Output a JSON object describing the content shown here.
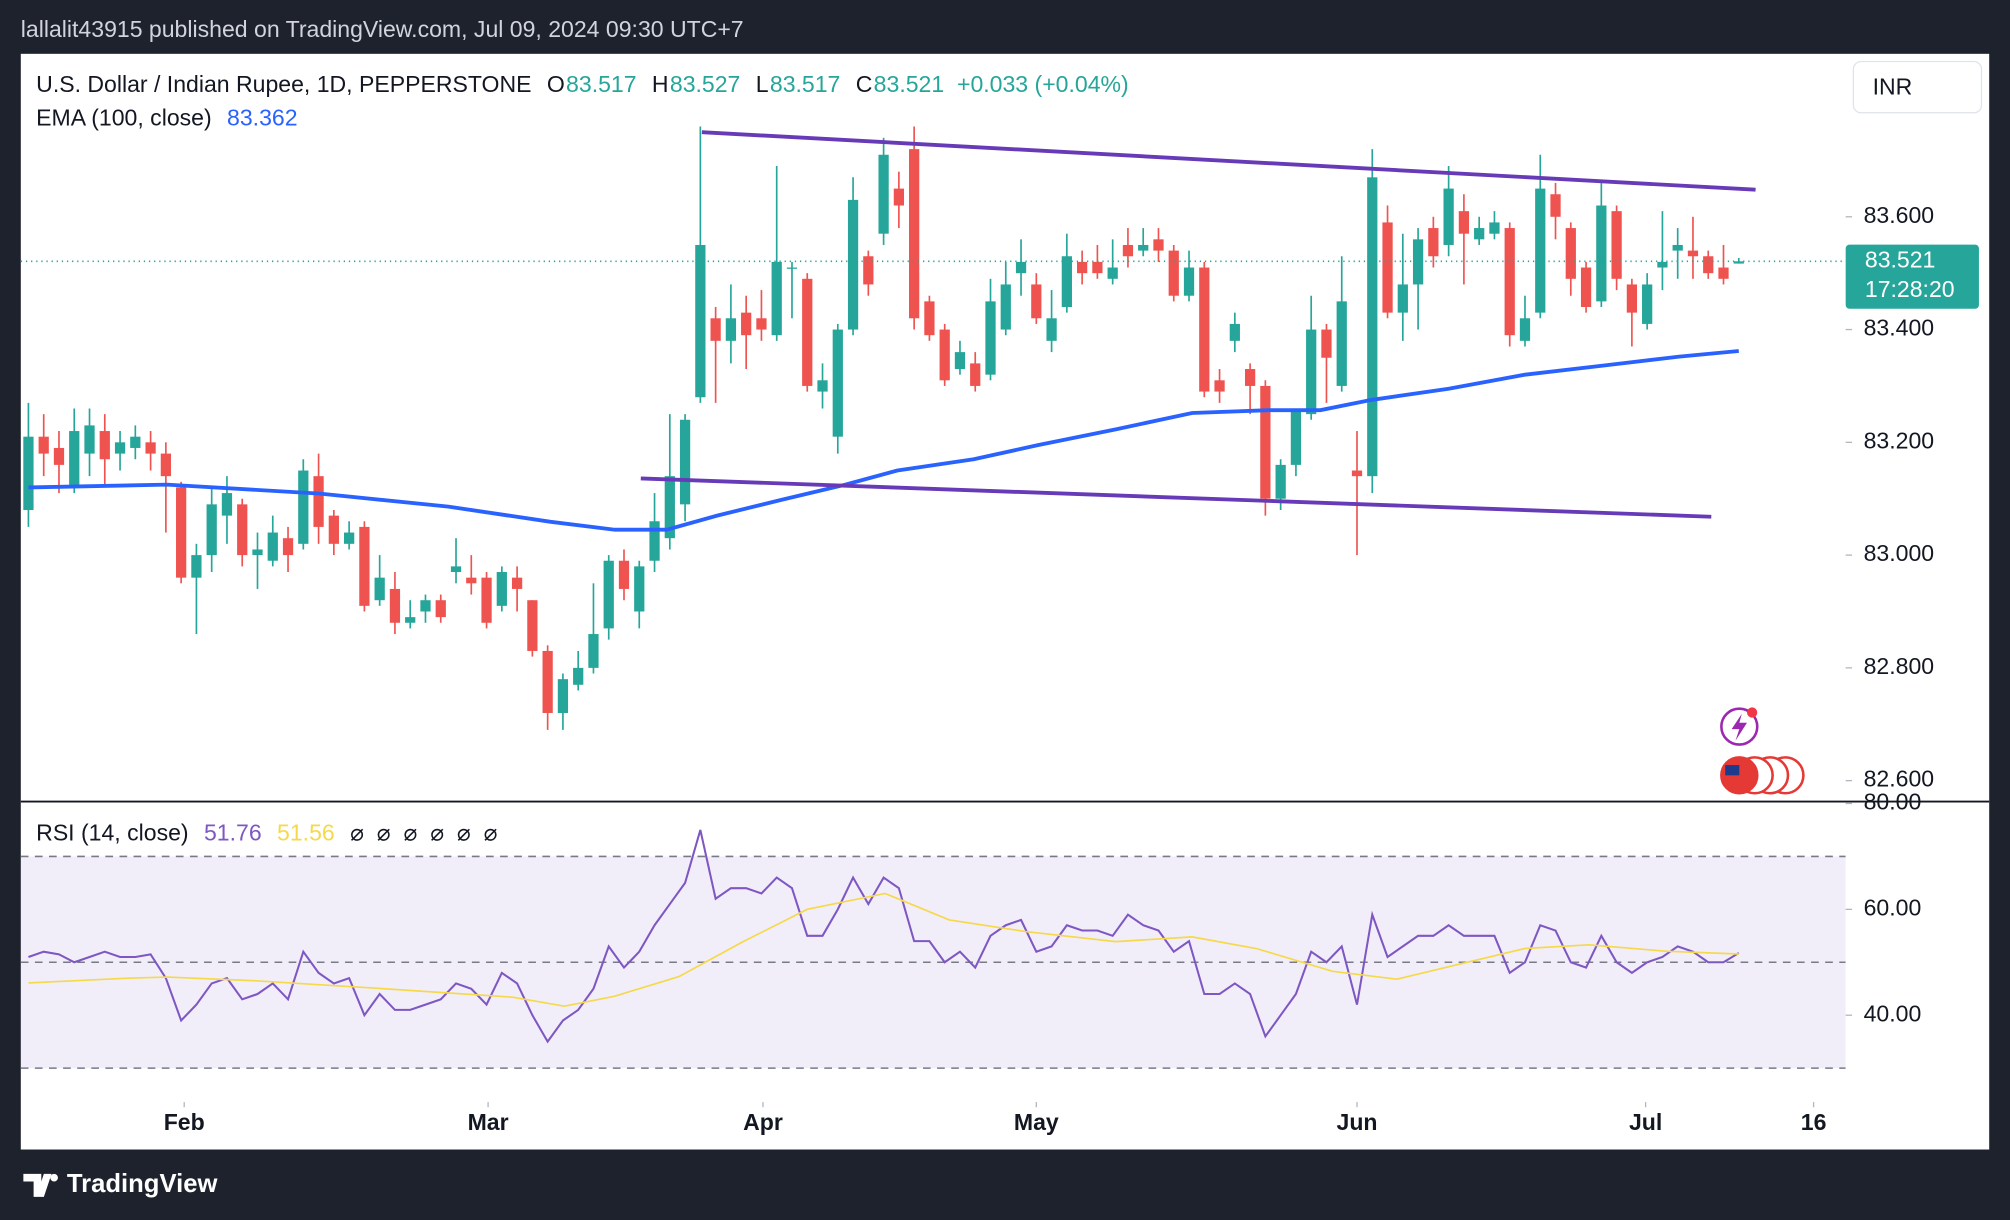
{
  "header": {
    "publisher": "lallalit43915 published on TradingView.com, Jul 09, 2024 09:30 UTC+7"
  },
  "footer": {
    "brand": "TradingView"
  },
  "chart_data": [
    {
      "type": "candlestick",
      "title": "U.S. Dollar / Indian Rupee, 1D, PEPPERSTONE",
      "currency": "INR",
      "up_color": "#26a69a",
      "down_color": "#ef5350",
      "ohlc_labels": [
        "O",
        "H",
        "L",
        "C"
      ],
      "change": "+0.033 (+0.04%)",
      "countdown": "17:28:20",
      "candles": {
        "open": [
          83.08,
          83.21,
          83.19,
          83.12,
          83.18,
          83.22,
          83.18,
          83.19,
          83.2,
          83.18,
          83.12,
          82.96,
          83.0,
          83.07,
          83.09,
          83.0,
          82.99,
          83.03,
          83.02,
          83.14,
          83.07,
          83.02,
          83.05,
          82.92,
          82.94,
          82.88,
          82.9,
          82.92,
          82.97,
          82.96,
          82.96,
          82.91,
          82.96,
          82.92,
          82.83,
          82.72,
          82.77,
          82.8,
          82.87,
          82.99,
          82.9,
          82.99,
          83.03,
          83.09,
          83.28,
          83.42,
          83.38,
          83.43,
          83.42,
          83.39,
          83.51,
          83.49,
          83.29,
          83.21,
          83.4,
          83.53,
          83.57,
          83.65,
          83.72,
          83.45,
          83.4,
          83.33,
          83.34,
          83.32,
          83.4,
          83.5,
          83.48,
          83.38,
          83.44,
          83.52,
          83.52,
          83.49,
          83.55,
          83.54,
          83.56,
          83.54,
          83.46,
          83.51,
          83.31,
          83.38,
          83.33,
          83.3,
          83.1,
          83.16,
          83.25,
          83.4,
          83.3,
          83.15,
          83.14,
          83.59,
          83.43,
          83.48,
          83.58,
          83.55,
          83.61,
          83.56,
          83.57,
          83.58,
          83.38,
          83.43,
          83.64,
          83.58,
          83.51,
          83.45,
          83.61,
          83.48,
          83.41,
          83.51,
          83.54,
          83.54,
          83.53,
          83.51,
          83.517
        ],
        "high": [
          83.27,
          83.25,
          83.22,
          83.26,
          83.26,
          83.25,
          83.22,
          83.23,
          83.22,
          83.2,
          83.13,
          83.02,
          83.12,
          83.14,
          83.1,
          83.04,
          83.07,
          83.05,
          83.17,
          83.18,
          83.08,
          83.06,
          83.06,
          83.0,
          82.97,
          82.92,
          82.93,
          82.93,
          83.03,
          83.0,
          82.97,
          82.98,
          82.98,
          82.92,
          82.84,
          82.79,
          82.83,
          82.95,
          83.0,
          83.01,
          82.99,
          83.11,
          83.25,
          83.25,
          83.76,
          83.44,
          83.48,
          83.46,
          83.47,
          83.69,
          83.52,
          83.5,
          83.34,
          83.41,
          83.67,
          83.54,
          83.74,
          83.68,
          83.76,
          83.46,
          83.41,
          83.38,
          83.36,
          83.49,
          83.52,
          83.56,
          83.5,
          83.47,
          83.57,
          83.54,
          83.55,
          83.56,
          83.58,
          83.58,
          83.58,
          83.55,
          83.54,
          83.52,
          83.33,
          83.43,
          83.34,
          83.31,
          83.17,
          83.26,
          83.46,
          83.41,
          83.53,
          83.22,
          83.72,
          83.62,
          83.57,
          83.58,
          83.6,
          83.69,
          83.64,
          83.6,
          83.61,
          83.59,
          83.46,
          83.71,
          83.66,
          83.59,
          83.52,
          83.66,
          83.62,
          83.49,
          83.5,
          83.61,
          83.58,
          83.6,
          83.54,
          83.55,
          83.527
        ],
        "low": [
          83.05,
          83.14,
          83.11,
          83.11,
          83.14,
          83.12,
          83.15,
          83.17,
          83.15,
          83.04,
          82.95,
          82.86,
          82.97,
          83.02,
          82.98,
          82.94,
          82.98,
          82.97,
          83.01,
          83.02,
          83.0,
          83.01,
          82.9,
          82.91,
          82.86,
          82.87,
          82.88,
          82.88,
          82.95,
          82.93,
          82.87,
          82.9,
          82.9,
          82.82,
          82.69,
          82.69,
          82.76,
          82.79,
          82.85,
          82.92,
          82.87,
          82.97,
          83.01,
          83.06,
          83.27,
          83.27,
          83.34,
          83.33,
          83.38,
          83.38,
          83.42,
          83.29,
          83.26,
          83.18,
          83.39,
          83.46,
          83.55,
          83.58,
          83.4,
          83.38,
          83.3,
          83.32,
          83.29,
          83.31,
          83.39,
          83.46,
          83.41,
          83.36,
          83.43,
          83.48,
          83.49,
          83.48,
          83.51,
          83.53,
          83.52,
          83.45,
          83.45,
          83.28,
          83.27,
          83.36,
          83.25,
          83.07,
          83.08,
          83.14,
          83.24,
          83.27,
          83.29,
          83.0,
          83.11,
          83.42,
          83.38,
          83.4,
          83.51,
          83.53,
          83.48,
          83.55,
          83.56,
          83.37,
          83.37,
          83.42,
          83.56,
          83.46,
          83.43,
          83.44,
          83.47,
          83.37,
          83.4,
          83.47,
          83.49,
          83.49,
          83.49,
          83.48,
          83.517
        ],
        "close": [
          83.21,
          83.18,
          83.16,
          83.22,
          83.23,
          83.17,
          83.2,
          83.21,
          83.18,
          83.14,
          82.96,
          83.0,
          83.09,
          83.11,
          83.0,
          83.01,
          83.04,
          83.0,
          83.15,
          83.05,
          83.02,
          83.04,
          82.91,
          82.96,
          82.88,
          82.89,
          82.92,
          82.89,
          82.98,
          82.95,
          82.88,
          82.97,
          82.94,
          82.83,
          82.72,
          82.78,
          82.8,
          82.86,
          82.99,
          82.94,
          82.98,
          83.06,
          83.14,
          83.24,
          83.55,
          83.38,
          83.42,
          83.39,
          83.4,
          83.52,
          83.51,
          83.3,
          83.31,
          83.4,
          83.63,
          83.48,
          83.71,
          83.62,
          83.42,
          83.39,
          83.31,
          83.36,
          83.3,
          83.45,
          83.48,
          83.52,
          83.42,
          83.42,
          83.53,
          83.5,
          83.5,
          83.51,
          83.53,
          83.55,
          83.54,
          83.46,
          83.51,
          83.29,
          83.29,
          83.41,
          83.3,
          83.1,
          83.16,
          83.26,
          83.4,
          83.35,
          83.45,
          83.14,
          83.67,
          83.43,
          83.48,
          83.56,
          83.53,
          83.65,
          83.57,
          83.58,
          83.59,
          83.39,
          83.42,
          83.65,
          83.6,
          83.49,
          83.44,
          83.62,
          83.49,
          83.43,
          83.48,
          83.52,
          83.55,
          83.53,
          83.5,
          83.49,
          83.521
        ]
      },
      "xlim": [
        -0.5,
        119
      ],
      "ylim": [
        82.564,
        83.889
      ],
      "yticks": [
        {
          "value": 83.6,
          "label": "83.600"
        },
        {
          "value": 83.4,
          "label": "83.400"
        },
        {
          "value": 83.2,
          "label": "83.200"
        },
        {
          "value": 83.0,
          "label": "83.000"
        },
        {
          "value": 82.8,
          "label": "82.800"
        },
        {
          "value": 82.6,
          "label": "82.600"
        }
      ],
      "xticks": [
        {
          "value": 10.2,
          "label": "Feb"
        },
        {
          "value": 30.1,
          "label": "Mar"
        },
        {
          "value": 48.1,
          "label": "Apr"
        },
        {
          "value": 66.0,
          "label": "May"
        },
        {
          "value": 87.0,
          "label": "Jun"
        },
        {
          "value": 105.9,
          "label": "Jul"
        },
        {
          "value": 116.9,
          "label": "16"
        }
      ],
      "indicators": [
        {
          "name": "EMA (100, close)",
          "color": "#2962ff",
          "x": [
            0,
            9.07,
            19.1,
            27.5,
            34.2,
            38.4,
            41.8,
            45.1,
            49.3,
            53.5,
            56.9,
            61.9,
            66.1,
            71.2,
            76.2,
            81.2,
            84.6,
            87.9,
            93.0,
            98.0,
            103.1,
            108.1,
            112.0
          ],
          "values": [
            83.12,
            83.125,
            83.109,
            83.086,
            83.059,
            83.045,
            83.045,
            83.07,
            83.098,
            83.125,
            83.15,
            83.17,
            83.195,
            83.223,
            83.252,
            83.257,
            83.257,
            83.275,
            83.295,
            83.32,
            83.336,
            83.352,
            83.362
          ]
        }
      ],
      "trendlines": [
        {
          "color": "#673ab7",
          "x": [
            44.1,
            113.1
          ],
          "values": [
            83.75,
            83.648
          ]
        },
        {
          "color": "#673ab7",
          "x": [
            40.1,
            110.2
          ],
          "values": [
            83.136,
            83.068
          ]
        }
      ]
    },
    {
      "type": "line",
      "title": "RSI (14, close)",
      "band_color": "#7e57c2",
      "na_markers": [
        "⌀",
        "⌀",
        "⌀",
        "⌀",
        "⌀",
        "⌀"
      ],
      "series": [
        {
          "color": "#7e57c2",
          "values": [
            51,
            52,
            51.5,
            50,
            51,
            52,
            51,
            51,
            51.5,
            47,
            39,
            42,
            46,
            47,
            43,
            44,
            46,
            43,
            52,
            48,
            46,
            47,
            40,
            44,
            41,
            41,
            42,
            43,
            46,
            45,
            42,
            48,
            46,
            40,
            35,
            39,
            41,
            45,
            53,
            49,
            52,
            57,
            61,
            65,
            75,
            62,
            64,
            64,
            63,
            66,
            64,
            55,
            55,
            60,
            66,
            61,
            66,
            64,
            54,
            54,
            50,
            52,
            49,
            55,
            57,
            58,
            52,
            53,
            57,
            56,
            56,
            55,
            59,
            57,
            56,
            52,
            54,
            44,
            44,
            46,
            44,
            36,
            40,
            44,
            52,
            50,
            53,
            42,
            59,
            51,
            53,
            55,
            55,
            57,
            55,
            55,
            55,
            48,
            50,
            57,
            56,
            50,
            49,
            55,
            50,
            48,
            50,
            51,
            53,
            52,
            50,
            50,
            51.76
          ]
        },
        {
          "color": "#f5d94a",
          "x": [
            0,
            6.5,
            9.1,
            14.9,
            23.3,
            31.7,
            35.1,
            38.4,
            42.6,
            46.8,
            51.0,
            56.1,
            60.3,
            65.3,
            71.2,
            76.2,
            80.4,
            85.4,
            89.6,
            93.8,
            98.0,
            102.2,
            107.2,
            112.0
          ],
          "values": [
            46.1,
            47,
            47.2,
            46.5,
            45,
            43.4,
            41.7,
            43.6,
            47.3,
            53.9,
            60,
            63,
            58,
            55.8,
            53.9,
            54.8,
            52.6,
            48.3,
            46.8,
            49.7,
            52.6,
            53.3,
            52.1,
            51.56
          ]
        }
      ],
      "ylim": [
        23.58,
        80.24
      ],
      "yticks": [
        {
          "value": 80,
          "label": "80.00"
        },
        {
          "value": 60,
          "label": "60.00"
        },
        {
          "value": 40,
          "label": "40.00"
        }
      ],
      "levels": [
        70,
        50,
        30
      ]
    }
  ]
}
